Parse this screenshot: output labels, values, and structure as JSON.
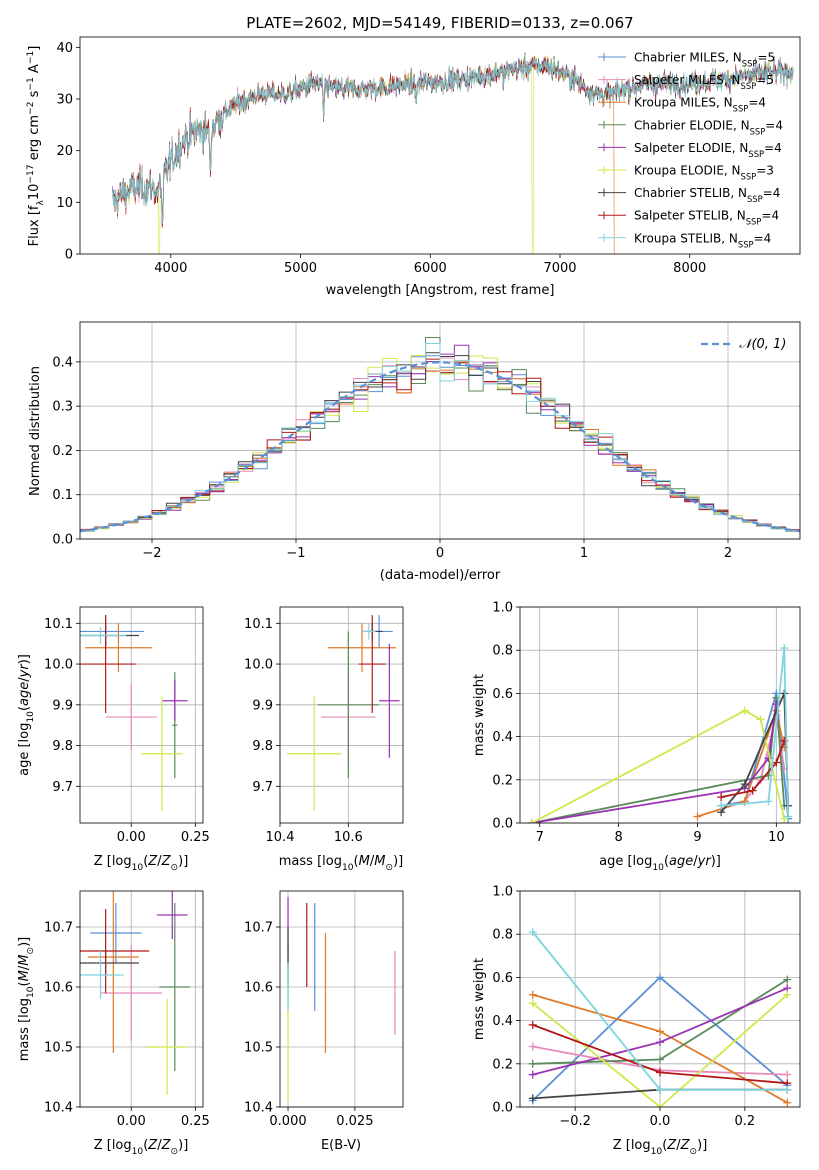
{
  "title": "PLATE=2602, MJD=54149, FIBERID=0133, z=0.067",
  "colors": {
    "Chabrier MILES": "#5b8fd6",
    "Salpeter MILES": "#e88ab9",
    "Kroupa MILES": "#e07a2a",
    "Chabrier ELODIE": "#5a8a5a",
    "Salpeter ELODIE": "#9a33b5",
    "Kroupa ELODIE": "#cfe84a",
    "Chabrier STELIB": "#444444",
    "Salpeter STELIB": "#b01818",
    "Kroupa STELIB": "#7fd3e0"
  },
  "legend_top": [
    "Chabrier MILES, N",
    "Salpeter MILES, N",
    "Kroupa MILES, N",
    "Chabrier ELODIE, N",
    "Salpeter ELODIE, N",
    "Kroupa ELODIE, N",
    "Chabrier STELIB, N",
    "Salpeter STELIB, N",
    "Kroupa STELIB, N"
  ],
  "legend_top_counts": [
    "=5",
    "=5",
    "=4",
    "=4",
    "=4",
    "=3",
    "=4",
    "=4",
    "=4"
  ],
  "legend_sub": "SSP",
  "legend_mid": "𝒩(0, 1)",
  "chart_data": [
    {
      "type": "line",
      "name": "spectrum",
      "xlabel": "wavelength [Angstrom, rest frame]",
      "ylabel": "Flux [f_λ10^-17 erg cm^-2 s^-1 A^-1]",
      "xlim": [
        3300,
        8850
      ],
      "ylim": [
        0,
        42
      ],
      "xticks": [
        4000,
        5000,
        6000,
        7000,
        8000
      ],
      "yticks": [
        0,
        10,
        20,
        30,
        40
      ],
      "continuum": {
        "x": [
          3550,
          3650,
          3750,
          3850,
          3900,
          3950,
          4000,
          4100,
          4200,
          4300,
          4400,
          4500,
          4700,
          4900,
          5100,
          5300,
          5500,
          5700,
          5900,
          6100,
          6300,
          6500,
          6700,
          6900,
          7100,
          7200,
          7300,
          7400,
          7500,
          7700,
          8000,
          8300,
          8600,
          8800
        ],
        "y": [
          10,
          12,
          13,
          13,
          12,
          15,
          18,
          22,
          24,
          24,
          27,
          29,
          31,
          31,
          33,
          32,
          32,
          32.5,
          33,
          33.5,
          34,
          35,
          36,
          36.5,
          34,
          32,
          31,
          31,
          32,
          33,
          33,
          34,
          35,
          35.5
        ]
      },
      "absorption_dips": [
        {
          "x": 3935,
          "y": 5
        },
        {
          "x": 4305,
          "y": 15
        },
        {
          "x": 5178,
          "y": 26
        },
        {
          "x": 5892,
          "y": 28
        },
        {
          "x": 6563,
          "y": 31
        }
      ],
      "gaps": [
        {
          "x": 3910,
          "series": "Kroupa ELODIE"
        },
        {
          "x": 6790,
          "series": "Kroupa ELODIE"
        },
        {
          "x": 7420,
          "series": "Kroupa MILES"
        }
      ]
    },
    {
      "type": "histogram",
      "name": "residuals",
      "xlabel": "(data-model)/error",
      "ylabel": "Normed distribution",
      "xlim": [
        -2.5,
        2.5
      ],
      "ylim": [
        0,
        0.49
      ],
      "xticks": [
        -2,
        -1,
        0,
        1,
        2
      ],
      "yticks": [
        0.0,
        0.1,
        0.2,
        0.3,
        0.4
      ],
      "bin_width": 0.1,
      "gaussian": {
        "mean": 0,
        "sigma": 1
      }
    },
    {
      "type": "scatter",
      "name": "Z-age",
      "xlabel": "Z [log10(Z/Z⊙)]",
      "ylabel": "age  [log10(age/yr)]",
      "xlim": [
        -0.2,
        0.28
      ],
      "ylim": [
        9.61,
        10.14
      ],
      "xticks": [
        0.0,
        0.25
      ],
      "xtick_labels": [
        "0.00",
        "0.25"
      ],
      "yticks": [
        9.7,
        9.8,
        9.9,
        10.0,
        10.1
      ],
      "points": [
        {
          "series": "Chabrier MILES",
          "x": -0.1,
          "y": 10.08,
          "xerr": 0.15,
          "yerr": 0.04
        },
        {
          "series": "Salpeter MILES",
          "x": 0.0,
          "y": 9.87,
          "xerr": 0.1,
          "yerr": 0.08
        },
        {
          "series": "Kroupa MILES",
          "x": -0.05,
          "y": 10.04,
          "xerr": 0.13,
          "yerr": 0.06
        },
        {
          "series": "Chabrier ELODIE",
          "x": 0.17,
          "y": 9.85,
          "xerr": 0.01,
          "yerr": 0.13
        },
        {
          "series": "Salpeter ELODIE",
          "x": 0.17,
          "y": 9.91,
          "xerr": 0.05,
          "yerr": 0.05
        },
        {
          "series": "Kroupa ELODIE",
          "x": 0.12,
          "y": 9.78,
          "xerr": 0.08,
          "yerr": 0.14
        },
        {
          "series": "Chabrier STELIB",
          "x": -0.1,
          "y": 10.07,
          "xerr": 0.13,
          "yerr": 0.03
        },
        {
          "series": "Salpeter STELIB",
          "x": -0.1,
          "y": 10.0,
          "xerr": 0.12,
          "yerr": 0.12
        },
        {
          "series": "Kroupa STELIB",
          "x": -0.12,
          "y": 10.07,
          "xerr": 0.1,
          "yerr": 0.02
        }
      ]
    },
    {
      "type": "scatter",
      "name": "mass-age",
      "xlabel": "mass [log10(M/M⊙)]",
      "ylabel": "",
      "xlim": [
        10.4,
        10.76
      ],
      "ylim": [
        9.61,
        10.14
      ],
      "xticks": [
        10.4,
        10.6
      ],
      "yticks": [
        9.7,
        9.8,
        9.9,
        10.0,
        10.1
      ],
      "points": [
        {
          "series": "Chabrier MILES",
          "x": 10.69,
          "y": 10.08,
          "xerr": 0.04,
          "yerr": 0.04
        },
        {
          "series": "Salpeter MILES",
          "x": 10.6,
          "y": 9.87,
          "xerr": 0.08,
          "yerr": 0.12
        },
        {
          "series": "Kroupa MILES",
          "x": 10.64,
          "y": 10.04,
          "xerr": 0.1,
          "yerr": 0.06
        },
        {
          "series": "Chabrier ELODIE",
          "x": 10.6,
          "y": 9.9,
          "xerr": 0.09,
          "yerr": 0.18
        },
        {
          "series": "Salpeter ELODIE",
          "x": 10.72,
          "y": 9.91,
          "xerr": 0.03,
          "yerr": 0.14
        },
        {
          "series": "Kroupa ELODIE",
          "x": 10.5,
          "y": 9.78,
          "xerr": 0.08,
          "yerr": 0.14
        },
        {
          "series": "Chabrier STELIB",
          "x": 10.67,
          "y": 10.08,
          "xerr": 0.03,
          "yerr": 0.02
        },
        {
          "series": "Salpeter STELIB",
          "x": 10.67,
          "y": 10.0,
          "xerr": 0.04,
          "yerr": 0.12
        },
        {
          "series": "Kroupa STELIB",
          "x": 10.66,
          "y": 10.08,
          "xerr": 0.02,
          "yerr": 0.02
        }
      ]
    },
    {
      "type": "line",
      "name": "age-weight",
      "xlabel": "age  [log10(age/yr)]",
      "ylabel": "mass weight",
      "xlim": [
        6.75,
        10.3
      ],
      "ylim": [
        0,
        1
      ],
      "xticks": [
        7,
        8,
        9,
        10
      ],
      "yticks": [
        0.0,
        0.2,
        0.4,
        0.6,
        0.8,
        1.0
      ],
      "series": [
        {
          "name": "Chabrier MILES",
          "x": [
            9.3,
            9.6,
            10.0,
            10.15
          ],
          "y": [
            0.08,
            0.1,
            0.6,
            0.02
          ]
        },
        {
          "name": "Salpeter MILES",
          "x": [
            9.6,
            9.8,
            10.0,
            10.1
          ],
          "y": [
            0.1,
            0.2,
            0.5,
            0.25
          ]
        },
        {
          "name": "Kroupa MILES",
          "x": [
            9.0,
            9.6,
            10.0,
            10.1
          ],
          "y": [
            0.03,
            0.1,
            0.52,
            0.35
          ]
        },
        {
          "name": "Chabrier ELODIE",
          "x": [
            6.9,
            9.9,
            10.0,
            10.1
          ],
          "y": [
            0.0,
            0.22,
            0.58,
            0.08
          ]
        },
        {
          "name": "Salpeter ELODIE",
          "x": [
            6.9,
            9.6,
            9.9,
            10.0
          ],
          "y": [
            0.0,
            0.16,
            0.3,
            0.55
          ]
        },
        {
          "name": "Kroupa ELODIE",
          "x": [
            6.9,
            9.6,
            9.8,
            10.1
          ],
          "y": [
            0.0,
            0.52,
            0.48,
            0.02
          ]
        },
        {
          "name": "Chabrier STELIB",
          "x": [
            9.3,
            9.6,
            10.1,
            10.15
          ],
          "y": [
            0.05,
            0.18,
            0.6,
            0.08
          ]
        },
        {
          "name": "Salpeter STELIB",
          "x": [
            9.3,
            9.7,
            10.0,
            10.1
          ],
          "y": [
            0.12,
            0.15,
            0.28,
            0.38
          ]
        },
        {
          "name": "Kroupa STELIB",
          "x": [
            9.3,
            9.9,
            10.1,
            10.15
          ],
          "y": [
            0.08,
            0.1,
            0.81,
            0.03
          ]
        }
      ]
    },
    {
      "type": "scatter",
      "name": "Z-mass",
      "xlabel": "Z [log10(Z/Z⊙)]",
      "ylabel": "mass [log10(M/M⊙)]",
      "xlim": [
        -0.2,
        0.28
      ],
      "ylim": [
        10.4,
        10.76
      ],
      "xticks": [
        0.0,
        0.25
      ],
      "xtick_labels": [
        "0.00",
        "0.25"
      ],
      "yticks": [
        10.4,
        10.5,
        10.6,
        10.7
      ],
      "points": [
        {
          "series": "Chabrier MILES",
          "x": -0.06,
          "y": 10.69,
          "xerr": 0.1,
          "yerr": 0.05
        },
        {
          "series": "Salpeter MILES",
          "x": 0.0,
          "y": 10.59,
          "xerr": 0.12,
          "yerr": 0.08
        },
        {
          "series": "Kroupa MILES",
          "x": -0.07,
          "y": 10.65,
          "xerr": 0.1,
          "yerr": 0.16
        },
        {
          "series": "Chabrier ELODIE",
          "x": 0.17,
          "y": 10.6,
          "xerr": 0.06,
          "yerr": 0.14
        },
        {
          "series": "Salpeter ELODIE",
          "x": 0.16,
          "y": 10.72,
          "xerr": 0.06,
          "yerr": 0.04
        },
        {
          "series": "Kroupa ELODIE",
          "x": 0.14,
          "y": 10.5,
          "xerr": 0.08,
          "yerr": 0.08
        },
        {
          "series": "Chabrier STELIB",
          "x": -0.1,
          "y": 10.64,
          "xerr": 0.13,
          "yerr": 0.02
        },
        {
          "series": "Salpeter STELIB",
          "x": -0.1,
          "y": 10.66,
          "xerr": 0.17,
          "yerr": 0.07
        },
        {
          "series": "Kroupa STELIB",
          "x": -0.12,
          "y": 10.62,
          "xerr": 0.09,
          "yerr": 0.04
        }
      ]
    },
    {
      "type": "scatter",
      "name": "EBV-mass",
      "xlabel": "E(B-V)",
      "ylabel": "",
      "xlim": [
        -0.003,
        0.043
      ],
      "ylim": [
        10.4,
        10.76
      ],
      "xticks": [
        0.0,
        0.025
      ],
      "xtick_labels": [
        "0.000",
        "0.025"
      ],
      "yticks": [
        10.4,
        10.5,
        10.6,
        10.7
      ],
      "points": [
        {
          "series": "Chabrier MILES",
          "x": 0.01,
          "y": 10.65,
          "yerr": 0.09
        },
        {
          "series": "Salpeter MILES",
          "x": 0.04,
          "y": 10.59,
          "yerr": 0.07
        },
        {
          "series": "Kroupa MILES",
          "x": 0.014,
          "y": 10.59,
          "yerr": 0.1
        },
        {
          "series": "Chabrier ELODIE",
          "x": 0.0,
          "y": 10.62,
          "yerr": 0.05
        },
        {
          "series": "Salpeter ELODIE",
          "x": 0.0,
          "y": 10.7,
          "yerr": 0.05
        },
        {
          "series": "Kroupa ELODIE",
          "x": 0.0,
          "y": 10.5,
          "yerr": 0.09
        },
        {
          "series": "Chabrier STELIB",
          "x": 0.0,
          "y": 10.65,
          "yerr": 0.05
        },
        {
          "series": "Salpeter STELIB",
          "x": 0.007,
          "y": 10.67,
          "yerr": 0.07
        },
        {
          "series": "Kroupa STELIB",
          "x": 0.0,
          "y": 10.6,
          "yerr": 0.04
        }
      ]
    },
    {
      "type": "line",
      "name": "Z-weight",
      "xlabel": "Z [log10(Z/Z⊙)]",
      "ylabel": "mass weight",
      "xlim": [
        -0.33,
        0.33
      ],
      "ylim": [
        0,
        1
      ],
      "xticks": [
        -0.2,
        0.0,
        0.2
      ],
      "xtick_labels": [
        "−0.2",
        "0.0",
        "0.2"
      ],
      "yticks": [
        0.0,
        0.2,
        0.4,
        0.6,
        0.8,
        1.0
      ],
      "series": [
        {
          "name": "Chabrier MILES",
          "x": [
            -0.3,
            0.0,
            0.3
          ],
          "y": [
            0.03,
            0.6,
            0.1
          ]
        },
        {
          "name": "Salpeter MILES",
          "x": [
            -0.3,
            0.0,
            0.3
          ],
          "y": [
            0.28,
            0.17,
            0.15
          ]
        },
        {
          "name": "Kroupa MILES",
          "x": [
            -0.3,
            0.0,
            0.3
          ],
          "y": [
            0.52,
            0.35,
            0.02
          ]
        },
        {
          "name": "Chabrier ELODIE",
          "x": [
            -0.3,
            0.0,
            0.3
          ],
          "y": [
            0.2,
            0.22,
            0.59
          ]
        },
        {
          "name": "Salpeter ELODIE",
          "x": [
            -0.3,
            0.0,
            0.3
          ],
          "y": [
            0.15,
            0.3,
            0.55
          ]
        },
        {
          "name": "Kroupa ELODIE",
          "x": [
            -0.3,
            0.0,
            0.3
          ],
          "y": [
            0.48,
            0.0,
            0.52
          ]
        },
        {
          "name": "Chabrier STELIB",
          "x": [
            -0.3,
            0.0,
            0.3
          ],
          "y": [
            0.04,
            0.08,
            0.08
          ]
        },
        {
          "name": "Salpeter STELIB",
          "x": [
            -0.3,
            0.0,
            0.3
          ],
          "y": [
            0.38,
            0.16,
            0.11
          ]
        },
        {
          "name": "Kroupa STELIB",
          "x": [
            -0.3,
            0.0,
            0.3
          ],
          "y": [
            0.81,
            0.08,
            0.08
          ]
        }
      ]
    }
  ]
}
